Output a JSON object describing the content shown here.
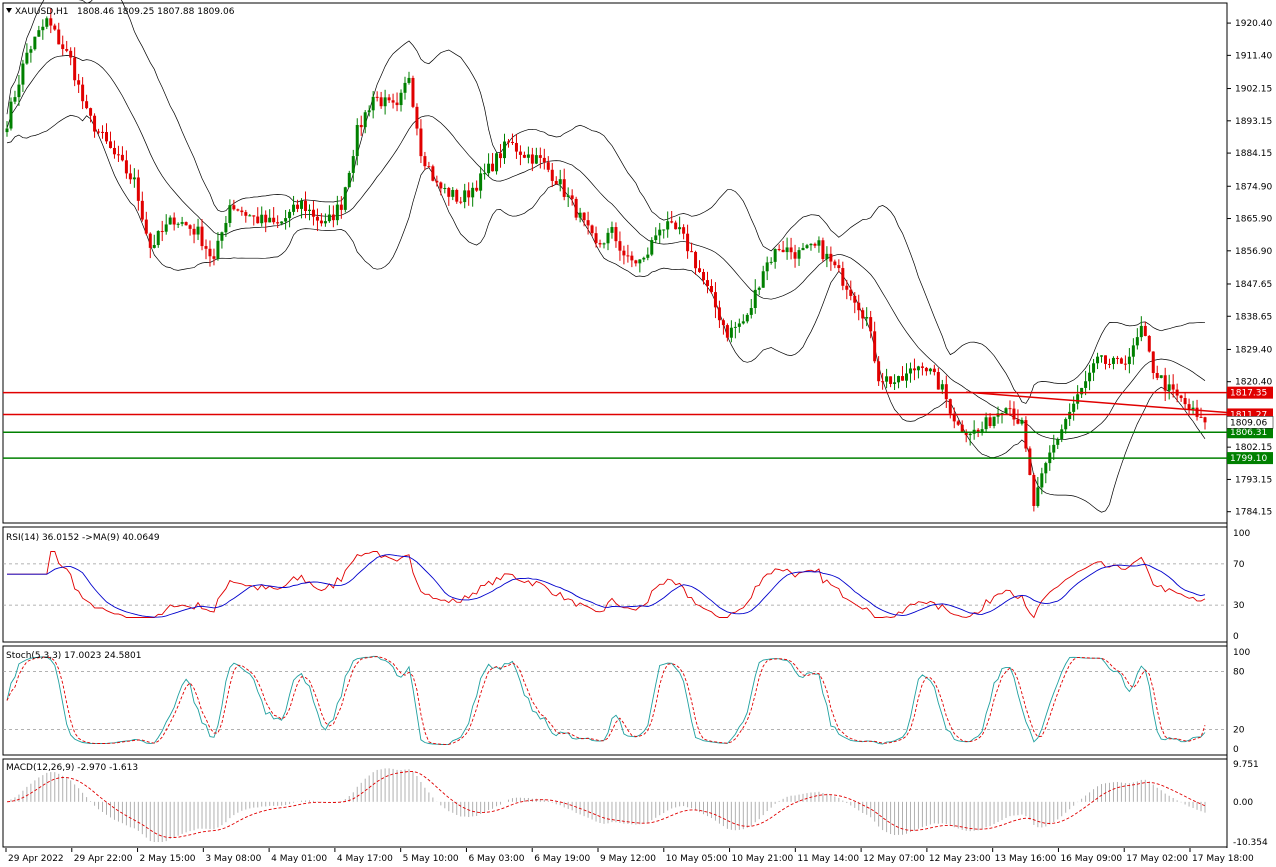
{
  "header": {
    "symbol": "XAUUSD,H1",
    "ohlc": "1808.46 1809.25 1807.88 1809.06",
    "menu_icon": "triangle-down-icon"
  },
  "chart_data": [
    {
      "type": "candlestick",
      "name": "XAUUSD,H1",
      "ylim": [
        1781.0,
        1926.0
      ],
      "y_ticks": [
        "1920.40",
        "1911.40",
        "1902.15",
        "1893.15",
        "1884.15",
        "1874.90",
        "1865.90",
        "1856.90",
        "1847.65",
        "1838.65",
        "1829.40",
        "1820.40",
        "1802.15",
        "1793.15",
        "1784.15"
      ],
      "y_tick_values": [
        1920.4,
        1911.4,
        1902.15,
        1893.15,
        1884.15,
        1874.9,
        1865.9,
        1856.9,
        1847.65,
        1838.65,
        1829.4,
        1820.4,
        1802.15,
        1793.15,
        1784.15
      ],
      "x_ticks": [
        "29 Apr 2022",
        "29 Apr 22:00",
        "2 May 15:00",
        "3 May 08:00",
        "4 May 01:00",
        "4 May 17:00",
        "5 May 10:00",
        "6 May 03:00",
        "6 May 19:00",
        "9 May 12:00",
        "10 May 05:00",
        "10 May 21:00",
        "11 May 14:00",
        "12 May 07:00",
        "12 May 23:00",
        "13 May 16:00",
        "16 May 09:00",
        "17 May 02:00",
        "17 May 18:00"
      ],
      "price_path": [
        {
          "i": 0,
          "p": 1893
        },
        {
          "i": 5,
          "p": 1912
        },
        {
          "i": 10,
          "p": 1921
        },
        {
          "i": 16,
          "p": 1910
        },
        {
          "i": 20,
          "p": 1895
        },
        {
          "i": 26,
          "p": 1885
        },
        {
          "i": 32,
          "p": 1876
        },
        {
          "i": 36,
          "p": 1858
        },
        {
          "i": 42,
          "p": 1866
        },
        {
          "i": 48,
          "p": 1862
        },
        {
          "i": 52,
          "p": 1854
        },
        {
          "i": 56,
          "p": 1870
        },
        {
          "i": 62,
          "p": 1866
        },
        {
          "i": 68,
          "p": 1864
        },
        {
          "i": 74,
          "p": 1870
        },
        {
          "i": 80,
          "p": 1864
        },
        {
          "i": 84,
          "p": 1870
        },
        {
          "i": 88,
          "p": 1890
        },
        {
          "i": 92,
          "p": 1900
        },
        {
          "i": 98,
          "p": 1896
        },
        {
          "i": 101,
          "p": 1906
        },
        {
          "i": 104,
          "p": 1885
        },
        {
          "i": 108,
          "p": 1875
        },
        {
          "i": 114,
          "p": 1871
        },
        {
          "i": 120,
          "p": 1878
        },
        {
          "i": 126,
          "p": 1887
        },
        {
          "i": 130,
          "p": 1884
        },
        {
          "i": 134,
          "p": 1882
        },
        {
          "i": 138,
          "p": 1877
        },
        {
          "i": 143,
          "p": 1868
        },
        {
          "i": 148,
          "p": 1858
        },
        {
          "i": 152,
          "p": 1862
        },
        {
          "i": 156,
          "p": 1854
        },
        {
          "i": 160,
          "p": 1854
        },
        {
          "i": 164,
          "p": 1864
        },
        {
          "i": 169,
          "p": 1862
        },
        {
          "i": 172,
          "p": 1856
        },
        {
          "i": 176,
          "p": 1846
        },
        {
          "i": 181,
          "p": 1834
        },
        {
          "i": 186,
          "p": 1838
        },
        {
          "i": 190,
          "p": 1852
        },
        {
          "i": 194,
          "p": 1858
        },
        {
          "i": 199,
          "p": 1856
        },
        {
          "i": 204,
          "p": 1858
        },
        {
          "i": 208,
          "p": 1852
        },
        {
          "i": 212,
          "p": 1846
        },
        {
          "i": 216,
          "p": 1838
        },
        {
          "i": 219,
          "p": 1822
        },
        {
          "i": 224,
          "p": 1820
        },
        {
          "i": 230,
          "p": 1826
        },
        {
          "i": 235,
          "p": 1818
        },
        {
          "i": 239,
          "p": 1808
        },
        {
          "i": 244,
          "p": 1806
        },
        {
          "i": 248,
          "p": 1811
        },
        {
          "i": 251,
          "p": 1815
        },
        {
          "i": 255,
          "p": 1808
        },
        {
          "i": 258,
          "p": 1786
        },
        {
          "i": 262,
          "p": 1800
        },
        {
          "i": 266,
          "p": 1810
        },
        {
          "i": 270,
          "p": 1818
        },
        {
          "i": 274,
          "p": 1826
        },
        {
          "i": 279,
          "p": 1825
        },
        {
          "i": 283,
          "p": 1829
        },
        {
          "i": 285,
          "p": 1835
        },
        {
          "i": 288,
          "p": 1824
        },
        {
          "i": 292,
          "p": 1818
        },
        {
          "i": 297,
          "p": 1813
        },
        {
          "i": 300,
          "p": 1809
        }
      ],
      "horizontal_levels": [
        {
          "value": 1817.35,
          "label": "1817.35",
          "color": "#e00000"
        },
        {
          "value": 1811.27,
          "label": "1811.27",
          "color": "#e00000"
        },
        {
          "value": 1806.31,
          "label": "1806.31",
          "color": "#008000"
        },
        {
          "value": 1799.1,
          "label": "1799.10",
          "color": "#008000"
        }
      ],
      "trendline": {
        "from": {
          "i": 241,
          "p": 1817.5
        },
        "to": {
          "i": 300,
          "p": 1811.8
        },
        "color": "#e00000"
      },
      "current_price": {
        "value": 1809.06,
        "label": "1809.06"
      },
      "overlays": [
        "Bollinger Bands"
      ],
      "colors": {
        "up": "#008000",
        "down": "#e00000",
        "band": "#000000"
      }
    },
    {
      "type": "line",
      "name": "RSI(14)",
      "title": "RSI(14) 36.0152  ->MA(9) 40.0649",
      "ylim": [
        0,
        100
      ],
      "y_ticks": [
        "100",
        "70",
        "30",
        "0"
      ],
      "y_tick_values": [
        100,
        70,
        30,
        0
      ],
      "levels": [
        70,
        30
      ],
      "series": [
        {
          "color": "#e00000"
        },
        {
          "color": "#0000cc"
        }
      ],
      "last_values": [
        36.0152,
        40.0649
      ]
    },
    {
      "type": "line",
      "name": "Stoch(5,3,3)",
      "title": "Stoch(5,3,3) 17.0023 24.5801",
      "ylim": [
        0,
        100
      ],
      "y_ticks": [
        "100",
        "80",
        "20",
        "0"
      ],
      "y_tick_values": [
        100,
        80,
        20,
        0
      ],
      "levels": [
        80,
        20
      ],
      "series": [
        {
          "color": "#20a0a0"
        },
        {
          "color": "#e00000",
          "dashed": true
        }
      ],
      "last_values": [
        17.0023,
        24.5801
      ]
    },
    {
      "type": "bar",
      "name": "MACD(12,26,9)",
      "title": "MACD(12,26,9) -2.970 -1.613",
      "ylim": [
        -10.354,
        9.751
      ],
      "y_ticks": [
        "9.751",
        "0.00",
        "-10.354"
      ],
      "y_tick_values": [
        9.751,
        0.0,
        -10.354
      ],
      "series": [
        {
          "color": "#b0b0b0"
        },
        {
          "color": "#e00000",
          "dashed": true
        }
      ],
      "last_values": [
        -2.97,
        -1.613
      ]
    }
  ]
}
